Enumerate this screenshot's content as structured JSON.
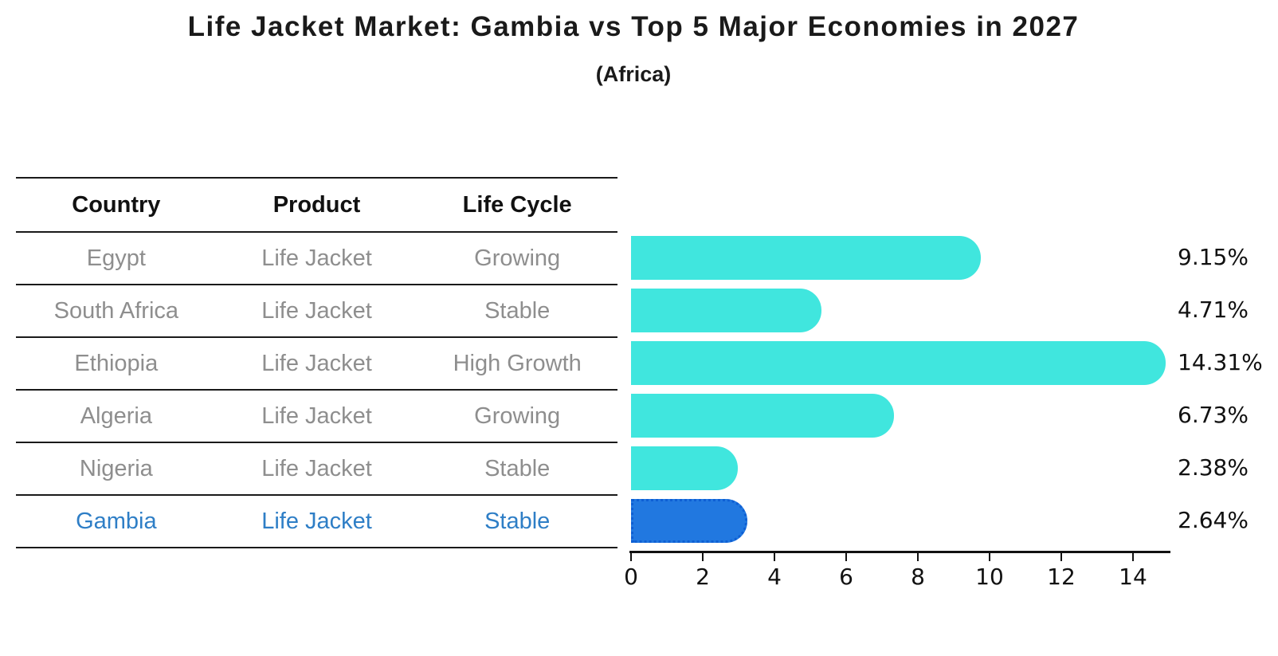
{
  "chart_data": {
    "type": "bar",
    "orientation": "horizontal",
    "title": "Life Jacket Market: Gambia vs Top 5 Major Economies in 2027",
    "subtitle": "(Africa)",
    "categories": [
      "Egypt",
      "South Africa",
      "Ethiopia",
      "Algeria",
      "Nigeria",
      "Gambia"
    ],
    "values": [
      9.15,
      4.71,
      14.31,
      6.73,
      2.38,
      2.64
    ],
    "value_labels": [
      "9.15%",
      "4.71%",
      "14.31%",
      "6.73%",
      "2.38%",
      "2.64%"
    ],
    "xlim": [
      0,
      15
    ],
    "xticks": [
      0,
      2,
      4,
      6,
      8,
      10,
      12,
      14
    ],
    "grid": false,
    "legend": false,
    "highlight_index": 5,
    "bar_color": "#40e6de",
    "highlight_bar_color": "#2178e0",
    "highlight_bar_border": "#0e5fd4"
  },
  "table": {
    "headers": [
      "Country",
      "Product",
      "Life Cycle"
    ],
    "rows": [
      {
        "country": "Egypt",
        "product": "Life Jacket",
        "life_cycle": "Growing",
        "highlight": false
      },
      {
        "country": "South Africa",
        "product": "Life Jacket",
        "life_cycle": "Stable",
        "highlight": false
      },
      {
        "country": "Ethiopia",
        "product": "Life Jacket",
        "life_cycle": "High Growth",
        "highlight": false
      },
      {
        "country": "Algeria",
        "product": "Life Jacket",
        "life_cycle": "Growing",
        "highlight": false
      },
      {
        "country": "Nigeria",
        "product": "Life Jacket",
        "life_cycle": "Stable",
        "highlight": false
      },
      {
        "country": "Gambia",
        "product": "Life Jacket",
        "life_cycle": "Stable",
        "highlight": true
      }
    ],
    "text_color": "#8e8e8e",
    "highlight_text_color": "#2e7ec6"
  }
}
